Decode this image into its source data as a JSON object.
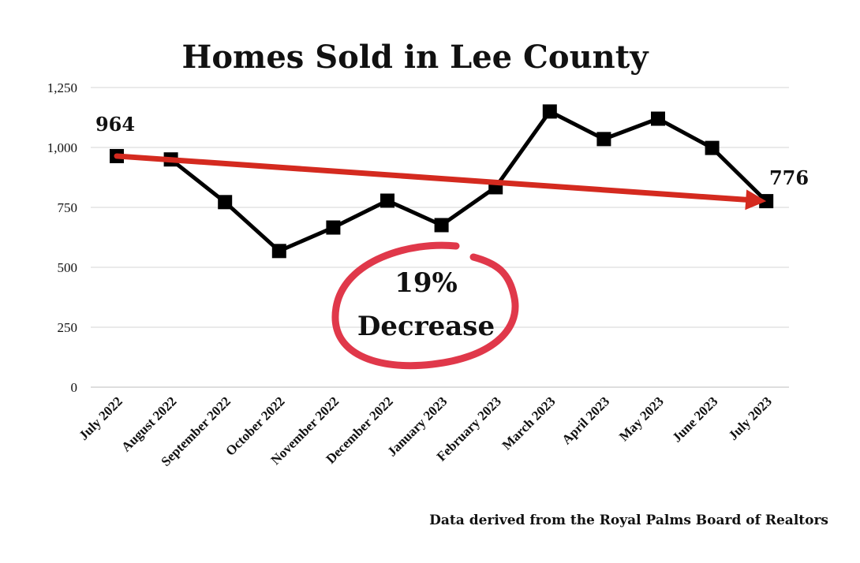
{
  "chart_data": {
    "type": "line",
    "title": "Homes Sold in Lee County",
    "categories": [
      "July 2022",
      "August 2022",
      "September 2022",
      "October 2022",
      "November 2022",
      "December 2022",
      "January 2023",
      "February 2023",
      "March 2023",
      "April 2023",
      "May 2023",
      "June 2023",
      "July 2023"
    ],
    "series": [
      {
        "values": [
          964,
          950,
          772,
          568,
          666,
          778,
          676,
          834,
          1150,
          1035,
          1120,
          998,
          776
        ]
      }
    ],
    "ylim": [
      0,
      1250
    ],
    "yticks": [
      0,
      250,
      500,
      750,
      1000,
      1250
    ],
    "ytick_labels": [
      "0",
      "250",
      "500",
      "750",
      "1,000",
      "1,250"
    ],
    "grid": true,
    "annotations": {
      "start_value": "964",
      "end_value": "776",
      "change_pct": "19%",
      "change_word": "Decrease"
    },
    "source": "Data derived from the Royal Palms Board of Realtors",
    "colors": {
      "line": "#000000",
      "trend_arrow": "#d42a1f",
      "circle": "#e0384a",
      "grid": "#d5d5d5"
    }
  }
}
